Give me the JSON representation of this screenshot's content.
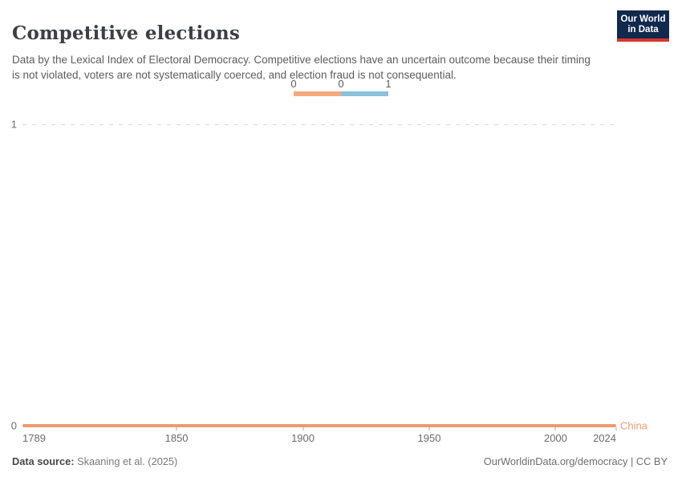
{
  "header": {
    "title": "Competitive elections",
    "subtitle": "Data by the Lexical Index of Electoral Democracy. Competitive elections have an uncertain outcome because their timing is not violated, voters are not systematically coerced, and election fraud is not consequential.",
    "logo": {
      "line1": "Our World",
      "line2": "in Data",
      "bg_color": "#12294e",
      "accent_color": "#d8352a"
    }
  },
  "legend": {
    "edge_labels": [
      "0",
      "0",
      "1"
    ],
    "bins": [
      {
        "value": "0",
        "color": "#f5a880"
      },
      {
        "value": "1",
        "color": "#8cc1dc"
      }
    ]
  },
  "chart_data": {
    "type": "line",
    "title": "Competitive elections",
    "x_axis": {
      "min": 1789,
      "max": 2024,
      "ticks": [
        "1789",
        "1850",
        "1900",
        "1950",
        "2000",
        "2024"
      ]
    },
    "y_axis": {
      "min": 0,
      "max": 1,
      "ticks": [
        "0",
        "1"
      ],
      "gridlines": [
        1
      ],
      "gridline_style": "dashed"
    },
    "series": [
      {
        "name": "China",
        "color": "#ef9a6f",
        "x": [
          1789,
          2024
        ],
        "y": [
          0,
          0
        ]
      }
    ],
    "legend_position": "top-center",
    "grid": "horizontal dashed at y=1 only; y=0 covered by series line"
  },
  "footer": {
    "source_label": "Data source:",
    "source_value": "Skaaning et al. (2025)",
    "credit": "OurWorldinData.org/democracy | CC BY"
  }
}
